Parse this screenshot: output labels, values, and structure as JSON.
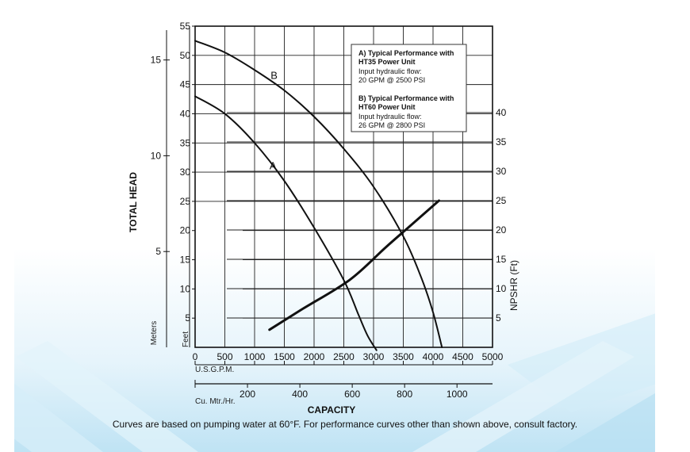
{
  "chart_data": {
    "type": "line",
    "x_axis": {
      "title": "CAPACITY",
      "usgpm": {
        "label": "U.S.G.P.M.",
        "ticks": [
          0,
          500,
          1000,
          1500,
          2000,
          2500,
          3000,
          3500,
          4000,
          4500,
          5000
        ],
        "range": [
          0,
          5000
        ]
      },
      "metric": {
        "label": "Cu. Mtr./Hr.",
        "ticks": [
          200,
          400,
          600,
          800,
          1000
        ]
      }
    },
    "y_axis": {
      "title": "TOTAL HEAD",
      "feet_label": "Feet",
      "feet_ticks": [
        5,
        10,
        15,
        20,
        25,
        30,
        35,
        40,
        45,
        50,
        55
      ],
      "range": [
        0,
        55
      ],
      "meters_label": "Meters",
      "meters_ticks": [
        5,
        10,
        15
      ]
    },
    "npshr_axis": {
      "title": "NPSHR (Ft)",
      "ticks": [
        5,
        10,
        15,
        20,
        25,
        30,
        35,
        40
      ]
    },
    "legend": {
      "a_title1": "A) Typical Performance  with",
      "a_title2": "HT35 Power Unit",
      "a_line1": "Input hydraulic flow:",
      "a_line2": "20 GPM @ 2500 PSI",
      "b_title1": "B) Typical Performance  with",
      "b_title2": "HT60 Power Unit",
      "b_line1": "Input hydraulic flow:",
      "b_line2": "26 GPM @ 2800 PSI",
      "placement": "top-right"
    },
    "series": [
      {
        "name": "A",
        "axis": "head_ft",
        "x": [
          0,
          500,
          1000,
          1500,
          2000,
          2500,
          2750,
          2900,
          3050
        ],
        "y": [
          43,
          40,
          35,
          28.5,
          20.5,
          11.5,
          5.5,
          2,
          -0.5
        ]
      },
      {
        "name": "B",
        "axis": "head_ft",
        "x": [
          0,
          500,
          1000,
          1500,
          2000,
          2500,
          3000,
          3500,
          3800,
          4000,
          4150
        ],
        "y": [
          52.5,
          50.5,
          47.5,
          44,
          39.5,
          34,
          27.5,
          19,
          12,
          6,
          0
        ]
      },
      {
        "name": "",
        "axis": "npshr_ft",
        "x": [
          1250,
          1800,
          2600,
          3200,
          3650,
          4100
        ],
        "y": [
          3,
          6.5,
          11.5,
          17,
          21,
          25
        ]
      }
    ],
    "grid": true,
    "caption": "Curves are based on pumping water at 60°F. For performance curves other than shown above, consult factory."
  }
}
